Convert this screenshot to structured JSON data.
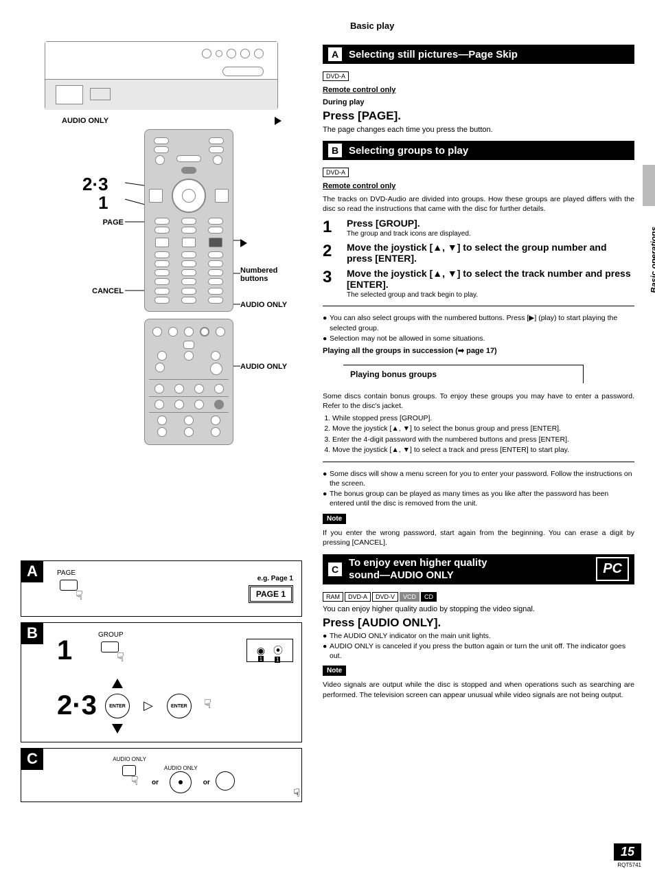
{
  "page_header": "Basic play",
  "side_tab": "Basic operations",
  "page_number": "15",
  "doc_code": "RQT5741",
  "left": {
    "audio_only": "AUDIO ONLY",
    "nums_23": "2·3",
    "num_1": "1",
    "page_label": "PAGE",
    "numbered_buttons": "Numbered\nbuttons",
    "cancel": "CANCEL",
    "boxA": {
      "letter": "A",
      "page": "PAGE",
      "eg": "e.g. Page 1",
      "disp": "PAGE 1"
    },
    "boxB": {
      "letter": "B",
      "group": "GROUP",
      "n1": "1",
      "n23": "2·3",
      "enter": "ENTER",
      "g_icon": "1",
      "t_icon": "1"
    },
    "boxC": {
      "letter": "C",
      "audio_only_small": "AUDIO ONLY",
      "or": "or"
    }
  },
  "secA": {
    "letter": "A",
    "title": "Selecting still pictures—Page Skip",
    "badge": "DVD-A",
    "remote_only": "Remote control only",
    "during": "During play",
    "press": "Press [PAGE].",
    "body": "The page changes each time you press the button."
  },
  "secB": {
    "letter": "B",
    "title": "Selecting groups to play",
    "badge": "DVD-A",
    "remote_only": "Remote control only",
    "intro": "The tracks on DVD-Audio are divided into groups. How these groups are played differs with the disc so read the instructions that came with the disc for further details.",
    "step1": "Press [GROUP].",
    "step1_sub": "The group and track icons are displayed.",
    "step2": "Move the joystick [▲, ▼] to select the group number and press [ENTER].",
    "step3": "Move the joystick [▲, ▼] to select the track number and press [ENTER].",
    "step3_sub": "The selected group and track begin to play.",
    "bullet1": "You can also select groups with the numbered buttons. Press [▶] (play) to start playing the selected group.",
    "bullet2": "Selection may not be allowed in some situations.",
    "playall": "Playing all the groups in succession (➡ page 17)",
    "bonus_head": "Playing bonus groups",
    "bonus_intro": "Some discs contain bonus groups. To enjoy these groups you may have to enter a password. Refer to the disc's jacket.",
    "bonus_1": "While stopped press [GROUP].",
    "bonus_2": "Move the joystick [▲, ▼] to select the bonus group and press [ENTER].",
    "bonus_3": "Enter the 4-digit password with the numbered buttons and press [ENTER].",
    "bonus_4": "Move the joystick [▲, ▼] to select a track and press [ENTER] to start play.",
    "bullet3": "Some discs will show a menu screen for you to enter your password. Follow the instructions on the screen.",
    "bullet4": "The bonus group can be played as many times as you like after the password has been entered until the disc is removed from the unit.",
    "note": "Note",
    "note_body": "If you enter the wrong password, start again from the beginning. You can erase a digit by pressing [CANCEL]."
  },
  "secC": {
    "letter": "C",
    "title_l1": "To enjoy even higher quality",
    "title_l2": "sound—AUDIO ONLY",
    "pc": "PC",
    "badges": [
      "RAM",
      "DVD-A",
      "DVD-V",
      "VCD",
      "CD"
    ],
    "badge_styles": [
      "light",
      "light",
      "light",
      "grey",
      "dark"
    ],
    "intro": "You can enjoy higher quality audio by stopping the video signal.",
    "press": "Press [AUDIO ONLY].",
    "bullet1": "The AUDIO ONLY indicator on the main unit lights.",
    "bullet2": "AUDIO ONLY is canceled if you press the button again or turn the unit off. The indicator goes out.",
    "note": "Note",
    "note_body": "Video signals are output while the disc is stopped and when operations such as searching are performed. The television screen can appear unusual while video signals are not being output."
  }
}
